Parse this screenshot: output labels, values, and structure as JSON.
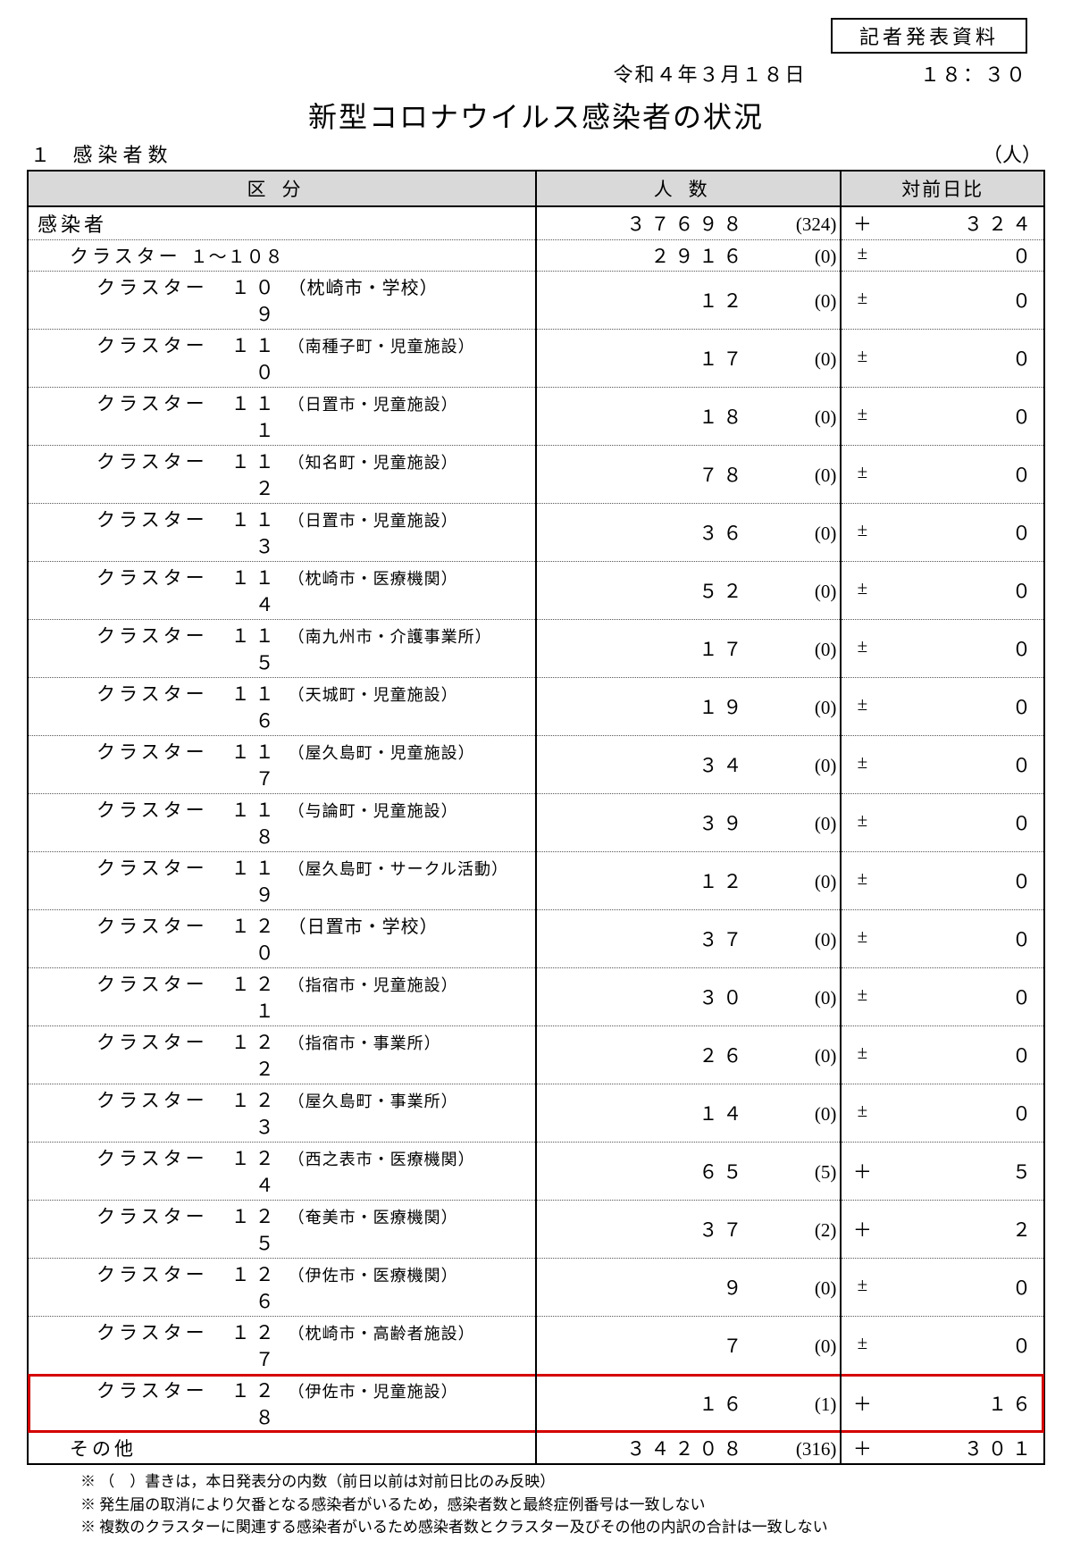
{
  "header": {
    "box_label": "記者発表資料",
    "date": "令和４年３月１８日",
    "time": "１８：３０",
    "title": "新型コロナウイルス感染者の状況",
    "section_num": "１",
    "section_label": "感染者数",
    "unit": "（人）"
  },
  "columns": {
    "category": "区分",
    "count": "人数",
    "change": "対前日比"
  },
  "rows": [
    {
      "indent": 0,
      "label": "感染者",
      "num": "",
      "loc": "",
      "count": "３７６９８",
      "paren": "(324)",
      "sign": "＋",
      "delta": "３２４",
      "hl": false
    },
    {
      "indent": 1,
      "label": "クラスター",
      "num": "",
      "loc": "１～１０８",
      "count": "２９１６",
      "paren": "(0)",
      "sign": "±",
      "delta": "０",
      "hl": false,
      "loc_big": true
    },
    {
      "indent": 2,
      "label": "クラスター",
      "num": "１０９",
      "loc": "（枕崎市・学校）",
      "count": "１２",
      "paren": "(0)",
      "sign": "±",
      "delta": "０",
      "hl": false,
      "loc_big": true
    },
    {
      "indent": 2,
      "label": "クラスター",
      "num": "１１０",
      "loc": "（南種子町・児童施設）",
      "count": "１７",
      "paren": "(0)",
      "sign": "±",
      "delta": "０",
      "hl": false
    },
    {
      "indent": 2,
      "label": "クラスター",
      "num": "１１１",
      "loc": "（日置市・児童施設）",
      "count": "１８",
      "paren": "(0)",
      "sign": "±",
      "delta": "０",
      "hl": false
    },
    {
      "indent": 2,
      "label": "クラスター",
      "num": "１１２",
      "loc": "（知名町・児童施設）",
      "count": "７８",
      "paren": "(0)",
      "sign": "±",
      "delta": "０",
      "hl": false
    },
    {
      "indent": 2,
      "label": "クラスター",
      "num": "１１３",
      "loc": "（日置市・児童施設）",
      "count": "３６",
      "paren": "(0)",
      "sign": "±",
      "delta": "０",
      "hl": false
    },
    {
      "indent": 2,
      "label": "クラスター",
      "num": "１１４",
      "loc": "（枕崎市・医療機関）",
      "count": "５２",
      "paren": "(0)",
      "sign": "±",
      "delta": "０",
      "hl": false
    },
    {
      "indent": 2,
      "label": "クラスター",
      "num": "１１５",
      "loc": "（南九州市・介護事業所）",
      "count": "１７",
      "paren": "(0)",
      "sign": "±",
      "delta": "０",
      "hl": false
    },
    {
      "indent": 2,
      "label": "クラスター",
      "num": "１１６",
      "loc": "（天城町・児童施設）",
      "count": "１９",
      "paren": "(0)",
      "sign": "±",
      "delta": "０",
      "hl": false
    },
    {
      "indent": 2,
      "label": "クラスター",
      "num": "１１７",
      "loc": "（屋久島町・児童施設）",
      "count": "３４",
      "paren": "(0)",
      "sign": "±",
      "delta": "０",
      "hl": false
    },
    {
      "indent": 2,
      "label": "クラスター",
      "num": "１１８",
      "loc": "（与論町・児童施設）",
      "count": "３９",
      "paren": "(0)",
      "sign": "±",
      "delta": "０",
      "hl": false
    },
    {
      "indent": 2,
      "label": "クラスター",
      "num": "１１９",
      "loc": "（屋久島町・サークル活動）",
      "count": "１２",
      "paren": "(0)",
      "sign": "±",
      "delta": "０",
      "hl": false
    },
    {
      "indent": 2,
      "label": "クラスター",
      "num": "１２０",
      "loc": "（日置市・学校）",
      "count": "３７",
      "paren": "(0)",
      "sign": "±",
      "delta": "０",
      "hl": false,
      "loc_big": true
    },
    {
      "indent": 2,
      "label": "クラスター",
      "num": "１２１",
      "loc": "（指宿市・児童施設）",
      "count": "３０",
      "paren": "(0)",
      "sign": "±",
      "delta": "０",
      "hl": false
    },
    {
      "indent": 2,
      "label": "クラスター",
      "num": "１２２",
      "loc": "（指宿市・事業所）",
      "count": "２６",
      "paren": "(0)",
      "sign": "±",
      "delta": "０",
      "hl": false
    },
    {
      "indent": 2,
      "label": "クラスター",
      "num": "１２３",
      "loc": "（屋久島町・事業所）",
      "count": "１４",
      "paren": "(0)",
      "sign": "±",
      "delta": "０",
      "hl": false
    },
    {
      "indent": 2,
      "label": "クラスター",
      "num": "１２４",
      "loc": "（西之表市・医療機関）",
      "count": "６５",
      "paren": "(5)",
      "sign": "＋",
      "delta": "５",
      "hl": false
    },
    {
      "indent": 2,
      "label": "クラスター",
      "num": "１２５",
      "loc": "（奄美市・医療機関）",
      "count": "３７",
      "paren": "(2)",
      "sign": "＋",
      "delta": "２",
      "hl": false
    },
    {
      "indent": 2,
      "label": "クラスター",
      "num": "１２６",
      "loc": "（伊佐市・医療機関）",
      "count": "９",
      "paren": "(0)",
      "sign": "±",
      "delta": "０",
      "hl": false
    },
    {
      "indent": 2,
      "label": "クラスター",
      "num": "１２７",
      "loc": "（枕崎市・高齢者施設）",
      "count": "７",
      "paren": "(0)",
      "sign": "±",
      "delta": "０",
      "hl": false
    },
    {
      "indent": 2,
      "label": "クラスター",
      "num": "１２８",
      "loc": "（伊佐市・児童施設）",
      "count": "１６",
      "paren": "(1)",
      "sign": "＋",
      "delta": "１６",
      "hl": true
    },
    {
      "indent": 1,
      "label": "その他",
      "num": "",
      "loc": "",
      "count": "３４２０８",
      "paren": "(316)",
      "sign": "＋",
      "delta": "３０１",
      "hl": false
    }
  ],
  "notes": [
    "※ （　）書きは，本日発表分の内数（前日以前は対前日比のみ反映）",
    "※ 発生届の取消により欠番となる感染者がいるため，感染者数と最終症例番号は一致しない",
    "※ 複数のクラスターに関連する感染者がいるため感染者数とクラスター及びその他の内訳の合計は一致しない"
  ],
  "style": {
    "highlight_color": "#d40000",
    "header_bg": "#d9d9d9",
    "col_widths": {
      "category": "50%",
      "count": "30%",
      "change": "20%"
    }
  }
}
